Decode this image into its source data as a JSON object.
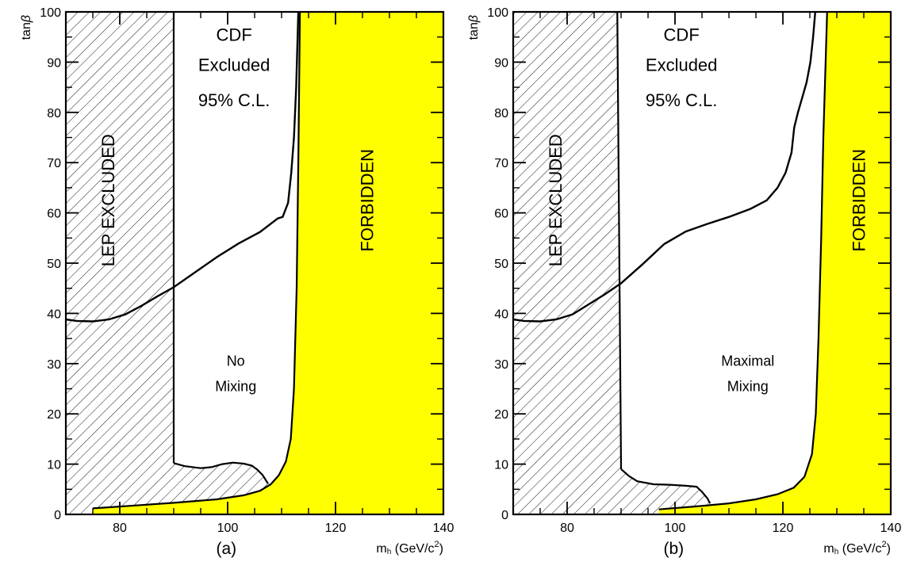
{
  "chart_data": [
    {
      "type": "area",
      "panel_label": "(a)",
      "xlabel": "m",
      "xlabel_sub": "h",
      "xlabel_units": "(GeV/c",
      "xlabel_sup": "2",
      "xlabel_close": ")",
      "ylabel": "tan",
      "ylabel_greek": "β",
      "xlim": [
        70,
        140
      ],
      "ylim": [
        0,
        100
      ],
      "x_ticks": [
        80,
        100,
        120,
        140
      ],
      "y_ticks": [
        0,
        10,
        20,
        30,
        40,
        50,
        60,
        70,
        80,
        90,
        100
      ],
      "grid": false,
      "regions": {
        "lep_label": "LEP EXCLUDED",
        "forbidden_label": "FORBIDDEN",
        "forbidden_color": "#ffff00",
        "cdf_label_lines": [
          "CDF",
          "Excluded",
          "95% C.L."
        ],
        "mixing_label_lines": [
          "No",
          "Mixing"
        ]
      },
      "lep_boundary": [
        [
          90,
          10.2
        ],
        [
          90,
          100
        ]
      ],
      "cdf_curve": [
        [
          70,
          38.8
        ],
        [
          72,
          38.5
        ],
        [
          75,
          38.4
        ],
        [
          78,
          38.8
        ],
        [
          81,
          39.8
        ],
        [
          84,
          41.5
        ],
        [
          87,
          43.4
        ],
        [
          90,
          45.2
        ],
        [
          94,
          48.2
        ],
        [
          98,
          51.2
        ],
        [
          102,
          53.9
        ],
        [
          106,
          56.2
        ],
        [
          109.3,
          58.9
        ],
        [
          110.2,
          59.2
        ],
        [
          111.2,
          62
        ],
        [
          111.8,
          68
        ],
        [
          112.3,
          75
        ],
        [
          112.7,
          85
        ],
        [
          113.1,
          100
        ]
      ],
      "cdf_lower_curve": [
        [
          90,
          10.2
        ],
        [
          92,
          9.6
        ],
        [
          95,
          9.2
        ],
        [
          97,
          9.4
        ],
        [
          99,
          10.0
        ],
        [
          101,
          10.3
        ],
        [
          103,
          10.1
        ],
        [
          104.5,
          9.7
        ],
        [
          105.5,
          8.9
        ],
        [
          106.5,
          7.8
        ],
        [
          107.5,
          6.1
        ]
      ],
      "forbidden_boundary": [
        [
          75,
          1.2
        ],
        [
          82,
          1.7
        ],
        [
          90,
          2.3
        ],
        [
          98,
          3.0
        ],
        [
          103,
          3.8
        ],
        [
          106,
          4.7
        ],
        [
          108,
          6.0
        ],
        [
          109.5,
          7.8
        ],
        [
          110.8,
          10.5
        ],
        [
          111.7,
          15
        ],
        [
          112.3,
          25
        ],
        [
          112.8,
          45
        ],
        [
          113.1,
          70
        ],
        [
          113.4,
          100
        ]
      ]
    },
    {
      "type": "area",
      "panel_label": "(b)",
      "xlabel": "m",
      "xlabel_sub": "h",
      "xlabel_units": "(GeV/c",
      "xlabel_sup": "2",
      "xlabel_close": ")",
      "ylabel": "tan",
      "ylabel_greek": "β",
      "xlim": [
        70,
        140
      ],
      "ylim": [
        0,
        100
      ],
      "x_ticks": [
        80,
        100,
        120,
        140
      ],
      "y_ticks": [
        0,
        10,
        20,
        30,
        40,
        50,
        60,
        70,
        80,
        90,
        100
      ],
      "grid": false,
      "regions": {
        "lep_label": "LEP EXCLUDED",
        "forbidden_label": "FORBIDDEN",
        "forbidden_color": "#ffff00",
        "cdf_label_lines": [
          "CDF",
          "Excluded",
          "95% C.L."
        ],
        "mixing_label_lines": [
          "Maximal",
          "Mixing"
        ]
      },
      "lep_boundary": [
        [
          90,
          9.0
        ],
        [
          89.3,
          100
        ]
      ],
      "cdf_curve": [
        [
          70,
          38.8
        ],
        [
          72,
          38.5
        ],
        [
          75,
          38.4
        ],
        [
          78,
          38.8
        ],
        [
          81,
          39.8
        ],
        [
          84,
          41.8
        ],
        [
          87,
          43.8
        ],
        [
          90,
          46.0
        ],
        [
          94,
          49.8
        ],
        [
          98,
          53.8
        ],
        [
          102,
          56.3
        ],
        [
          106,
          57.8
        ],
        [
          110,
          59.2
        ],
        [
          114,
          60.8
        ],
        [
          117,
          62.5
        ],
        [
          119,
          65.0
        ],
        [
          120.5,
          68
        ],
        [
          121.6,
          72
        ],
        [
          122.1,
          77
        ],
        [
          122.8,
          80
        ],
        [
          123.6,
          83
        ],
        [
          124.4,
          86
        ],
        [
          125.1,
          90
        ],
        [
          125.6,
          95
        ],
        [
          126.0,
          100
        ]
      ],
      "cdf_lower_curve": [
        [
          90,
          9.0
        ],
        [
          91.5,
          7.6
        ],
        [
          93,
          6.6
        ],
        [
          96,
          6.0
        ],
        [
          99,
          5.9
        ],
        [
          102,
          5.7
        ],
        [
          104,
          5.5
        ],
        [
          105,
          4.5
        ],
        [
          106,
          3.2
        ],
        [
          106.5,
          2.2
        ]
      ],
      "forbidden_boundary": [
        [
          97,
          1.0
        ],
        [
          104,
          1.6
        ],
        [
          110,
          2.2
        ],
        [
          115,
          3.0
        ],
        [
          119,
          4.0
        ],
        [
          122,
          5.3
        ],
        [
          124,
          7.5
        ],
        [
          125.4,
          12
        ],
        [
          126.1,
          20
        ],
        [
          126.6,
          35
        ],
        [
          127.1,
          55
        ],
        [
          127.5,
          75
        ],
        [
          128.2,
          100
        ]
      ]
    }
  ]
}
